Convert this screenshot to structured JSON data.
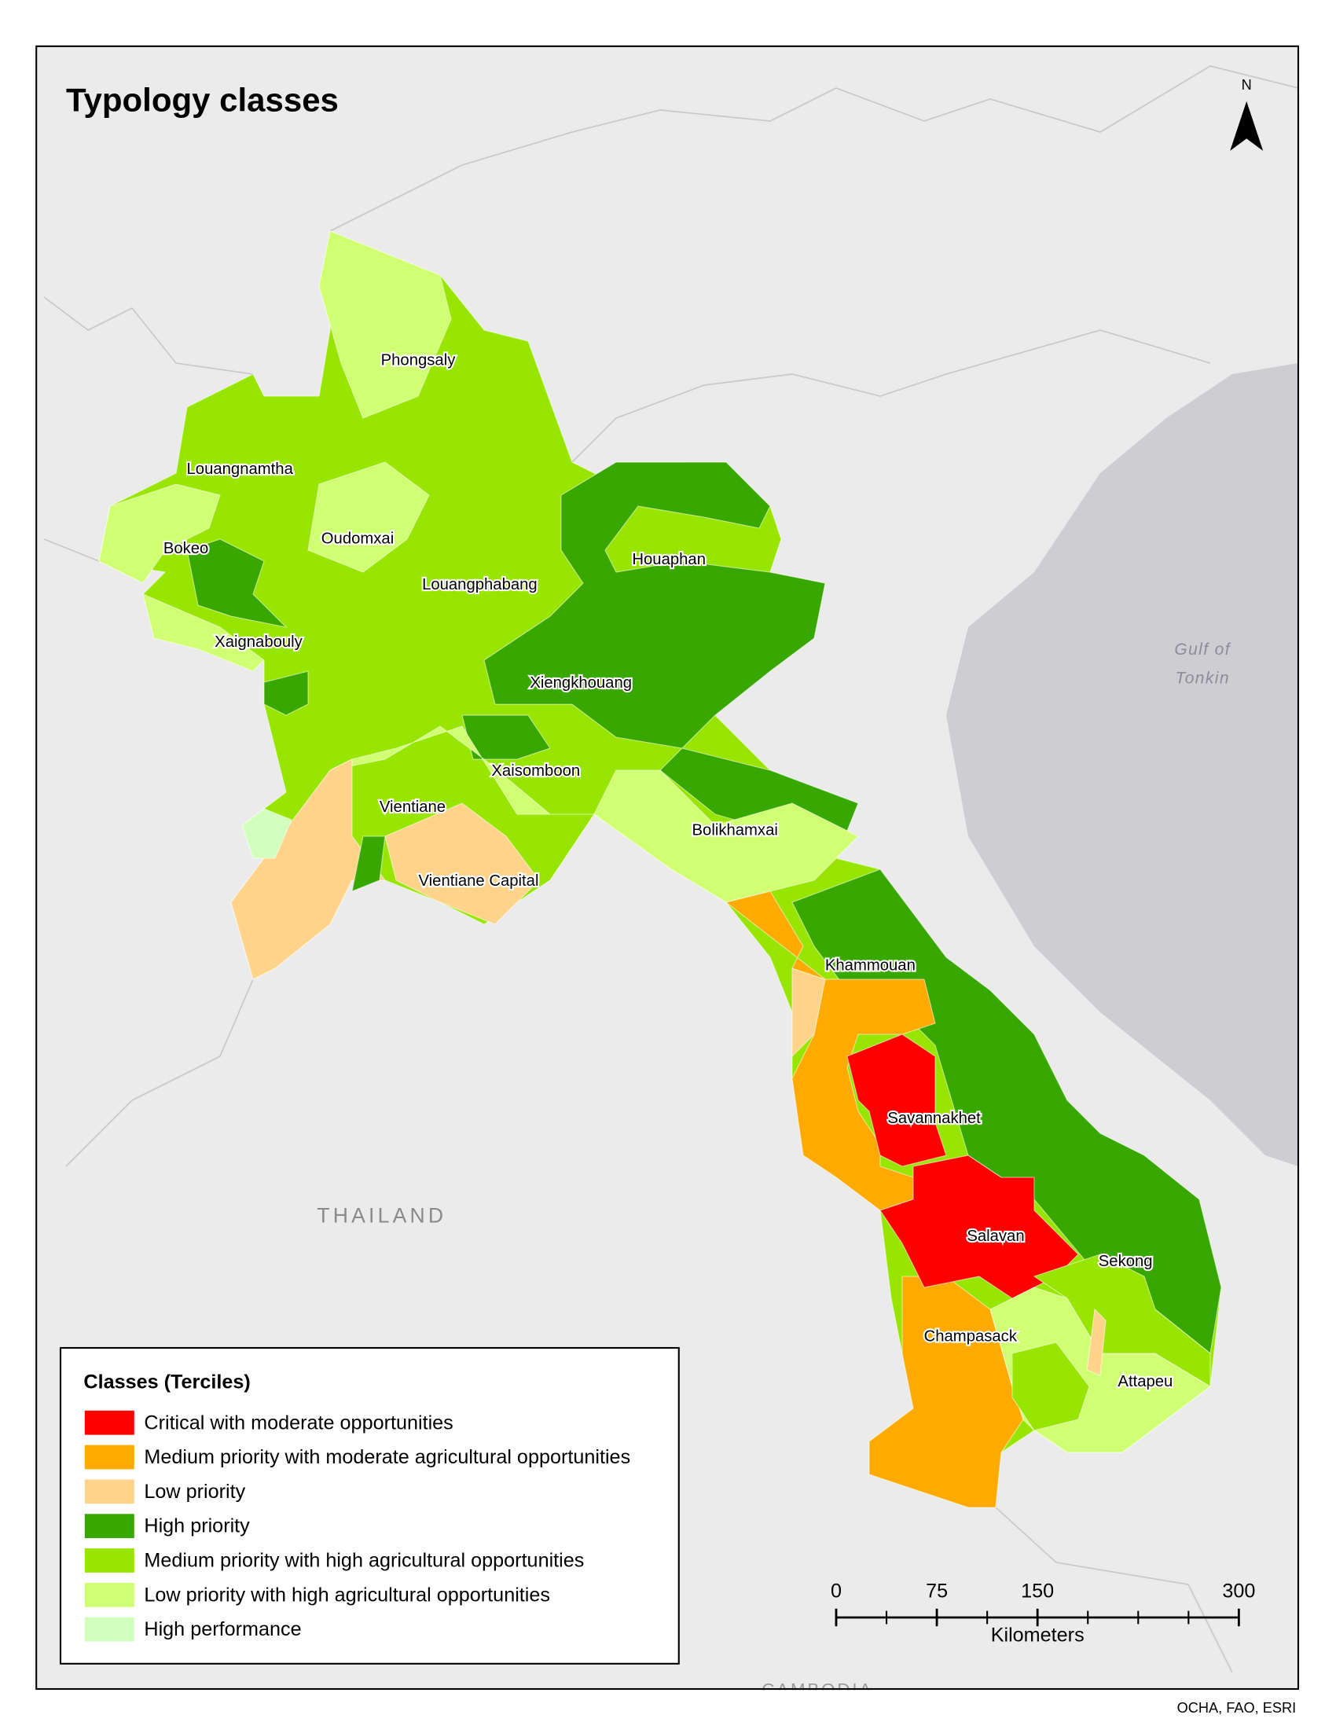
{
  "title": "Typology classes",
  "north_label": "N",
  "provinces": [
    "Phongsaly",
    "Louangnamtha",
    "Oudomxai",
    "Bokeo",
    "Houaphan",
    "Louangphabang",
    "Xaignabouly",
    "Xiengkhouang",
    "Xaisomboon",
    "Vientiane",
    "Bolikhamxai",
    "Vientiane Capital",
    "Khammouan",
    "Savannakhet",
    "Salavan",
    "Sekong",
    "Champasack",
    "Attapeu"
  ],
  "countries": [
    "THAILAND",
    "CAMBODIA"
  ],
  "water": [
    "Gulf of",
    "Tonkin"
  ],
  "legend": {
    "title": "Classes (Terciles)",
    "items": [
      {
        "label": "Critical with moderate opportunities",
        "color": "#ff0000"
      },
      {
        "label": "Medium priority with moderate agricultural opportunities",
        "color": "#ffaa00"
      },
      {
        "label": "Low priority",
        "color": "#ffd38a"
      },
      {
        "label": "High priority",
        "color": "#38a800"
      },
      {
        "label": "Medium priority with high agricultural opportunities",
        "color": "#98e600"
      },
      {
        "label": "Low priority with high agricultural opportunities",
        "color": "#d1ff73"
      },
      {
        "label": "High performance",
        "color": "#d3ffbe"
      }
    ]
  },
  "scale_bar": {
    "ticks": [
      0,
      75,
      150,
      300
    ],
    "unit": "Kilometers"
  },
  "credit": "OCHA, FAO, ESRI"
}
